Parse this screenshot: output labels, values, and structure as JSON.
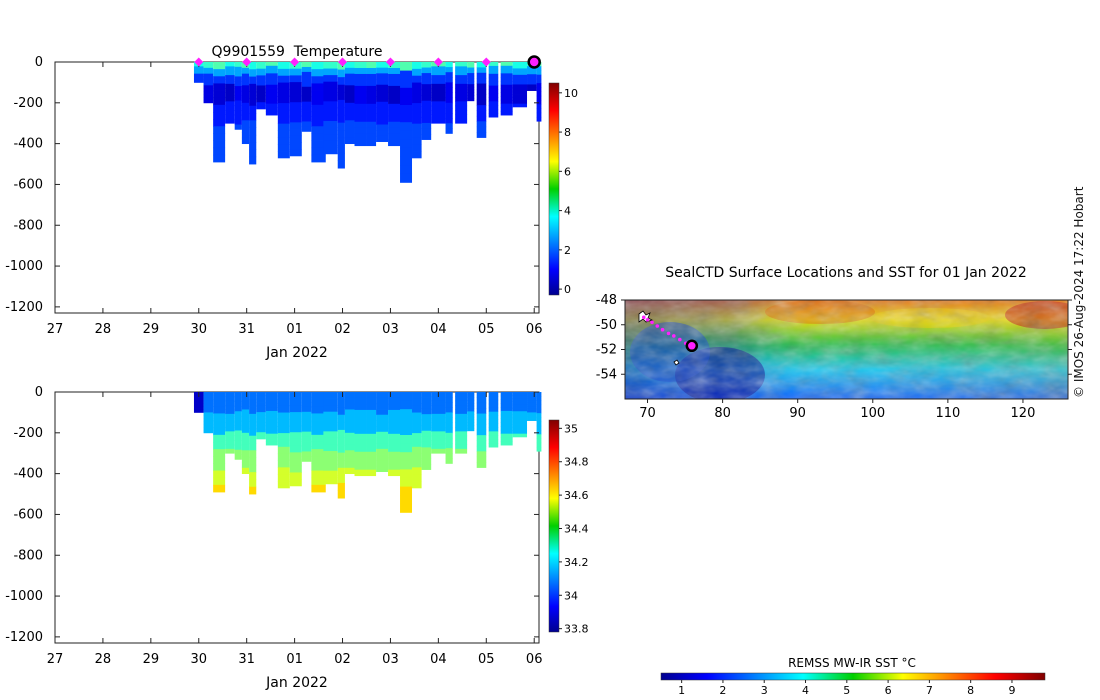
{
  "credit": "© IMOS 26-Aug-2024 17:22 Hobart",
  "chart_data": [
    {
      "type": "heatmap",
      "title": "Q9901559  Temperature",
      "xlabel": "Jan 2022",
      "ylabel": "",
      "x_ticks": [
        "27",
        "28",
        "29",
        "30",
        "31",
        "01",
        "02",
        "03",
        "04",
        "05",
        "06"
      ],
      "x_range_days": [
        27,
        37.1
      ],
      "ylim": [
        -1230,
        0
      ],
      "y_ticks": [
        0,
        -200,
        -400,
        -600,
        -800,
        -1000,
        -1200
      ],
      "colorbar": {
        "min": -0.3,
        "max": 10.5,
        "ticks": [
          0,
          2,
          4,
          6,
          8,
          10
        ],
        "palette": "jet"
      },
      "surface_marks_days": [
        30,
        31,
        32,
        33,
        34,
        35,
        36
      ],
      "latest_mark_day": 37,
      "profiles": [
        {
          "t": 29.9,
          "w": 0.2,
          "depth": 100
        },
        {
          "t": 30.1,
          "w": 0.2,
          "depth": 200
        },
        {
          "t": 30.3,
          "w": 0.25,
          "depth": 490
        },
        {
          "t": 30.55,
          "w": 0.2,
          "depth": 300
        },
        {
          "t": 30.75,
          "w": 0.15,
          "depth": 330
        },
        {
          "t": 30.9,
          "w": 0.15,
          "depth": 400
        },
        {
          "t": 31.05,
          "w": 0.15,
          "depth": 500
        },
        {
          "t": 31.2,
          "w": 0.2,
          "depth": 230
        },
        {
          "t": 31.4,
          "w": 0.25,
          "depth": 260
        },
        {
          "t": 31.65,
          "w": 0.25,
          "depth": 470
        },
        {
          "t": 31.9,
          "w": 0.25,
          "depth": 460
        },
        {
          "t": 32.15,
          "w": 0.2,
          "depth": 340
        },
        {
          "t": 32.35,
          "w": 0.3,
          "depth": 490
        },
        {
          "t": 32.6,
          "w": 0.3,
          "depth": 450
        },
        {
          "t": 32.9,
          "w": 0.15,
          "depth": 520
        },
        {
          "t": 33.05,
          "w": 0.2,
          "depth": 400
        },
        {
          "t": 33.25,
          "w": 0.25,
          "depth": 410
        },
        {
          "t": 33.5,
          "w": 0.2,
          "depth": 410
        },
        {
          "t": 33.7,
          "w": 0.25,
          "depth": 390
        },
        {
          "t": 33.95,
          "w": 0.3,
          "depth": 410
        },
        {
          "t": 34.2,
          "w": 0.25,
          "depth": 590
        },
        {
          "t": 34.45,
          "w": 0.2,
          "depth": 470
        },
        {
          "t": 34.65,
          "w": 0.2,
          "depth": 380
        },
        {
          "t": 34.85,
          "w": 0.3,
          "depth": 300
        },
        {
          "t": 35.15,
          "w": 0.15,
          "depth": 350
        },
        {
          "t": 35.35,
          "w": 0.25,
          "depth": 300
        },
        {
          "t": 35.6,
          "w": 0.15,
          "depth": 190
        },
        {
          "t": 35.8,
          "w": 0.2,
          "depth": 370
        },
        {
          "t": 36.05,
          "w": 0.2,
          "depth": 270
        },
        {
          "t": 36.3,
          "w": 0.25,
          "depth": 260
        },
        {
          "t": 36.55,
          "w": 0.3,
          "depth": 220
        },
        {
          "t": 36.85,
          "w": 0.2,
          "depth": 140
        },
        {
          "t": 37.05,
          "w": 0.1,
          "depth": 290
        }
      ]
    },
    {
      "type": "heatmap",
      "title": "",
      "xlabel": "Jan 2022",
      "ylabel": "",
      "x_ticks": [
        "27",
        "28",
        "29",
        "30",
        "31",
        "01",
        "02",
        "03",
        "04",
        "05",
        "06"
      ],
      "x_range_days": [
        27,
        37.1
      ],
      "ylim": [
        -1230,
        0
      ],
      "y_ticks": [
        0,
        -200,
        -400,
        -600,
        -800,
        -1000,
        -1200
      ],
      "colorbar": {
        "min": 33.78,
        "max": 35.05,
        "ticks": [
          33.8,
          34,
          34.2,
          34.4,
          34.6,
          34.8,
          35
        ],
        "palette": "jet"
      }
    },
    {
      "type": "heatmap",
      "title": "SealCTD Surface Locations and SST for 01 Jan 2022",
      "xlabel": "",
      "ylabel": "",
      "xlim": [
        67,
        126
      ],
      "ylim": [
        -56,
        -48
      ],
      "x_ticks": [
        70,
        80,
        90,
        100,
        110,
        120
      ],
      "y_ticks": [
        -48,
        -50,
        -52,
        -54
      ],
      "colorbar": {
        "label": "REMSS MW-IR SST °C",
        "min": 0.5,
        "max": 9.8,
        "ticks": [
          1,
          2,
          3,
          4,
          5,
          6,
          7,
          8,
          9
        ],
        "palette": "jet"
      },
      "track_lon": [
        69.5,
        70,
        70.6,
        71.3,
        72,
        72.8,
        73.5,
        74.3,
        75.1,
        75.9
      ],
      "track_lat": [
        -49.4,
        -49.6,
        -49.8,
        -50.1,
        -50.4,
        -50.7,
        -50.9,
        -51.2,
        -51.5,
        -51.7
      ],
      "latest_position": {
        "lon": 75.9,
        "lat": -51.7
      }
    }
  ]
}
